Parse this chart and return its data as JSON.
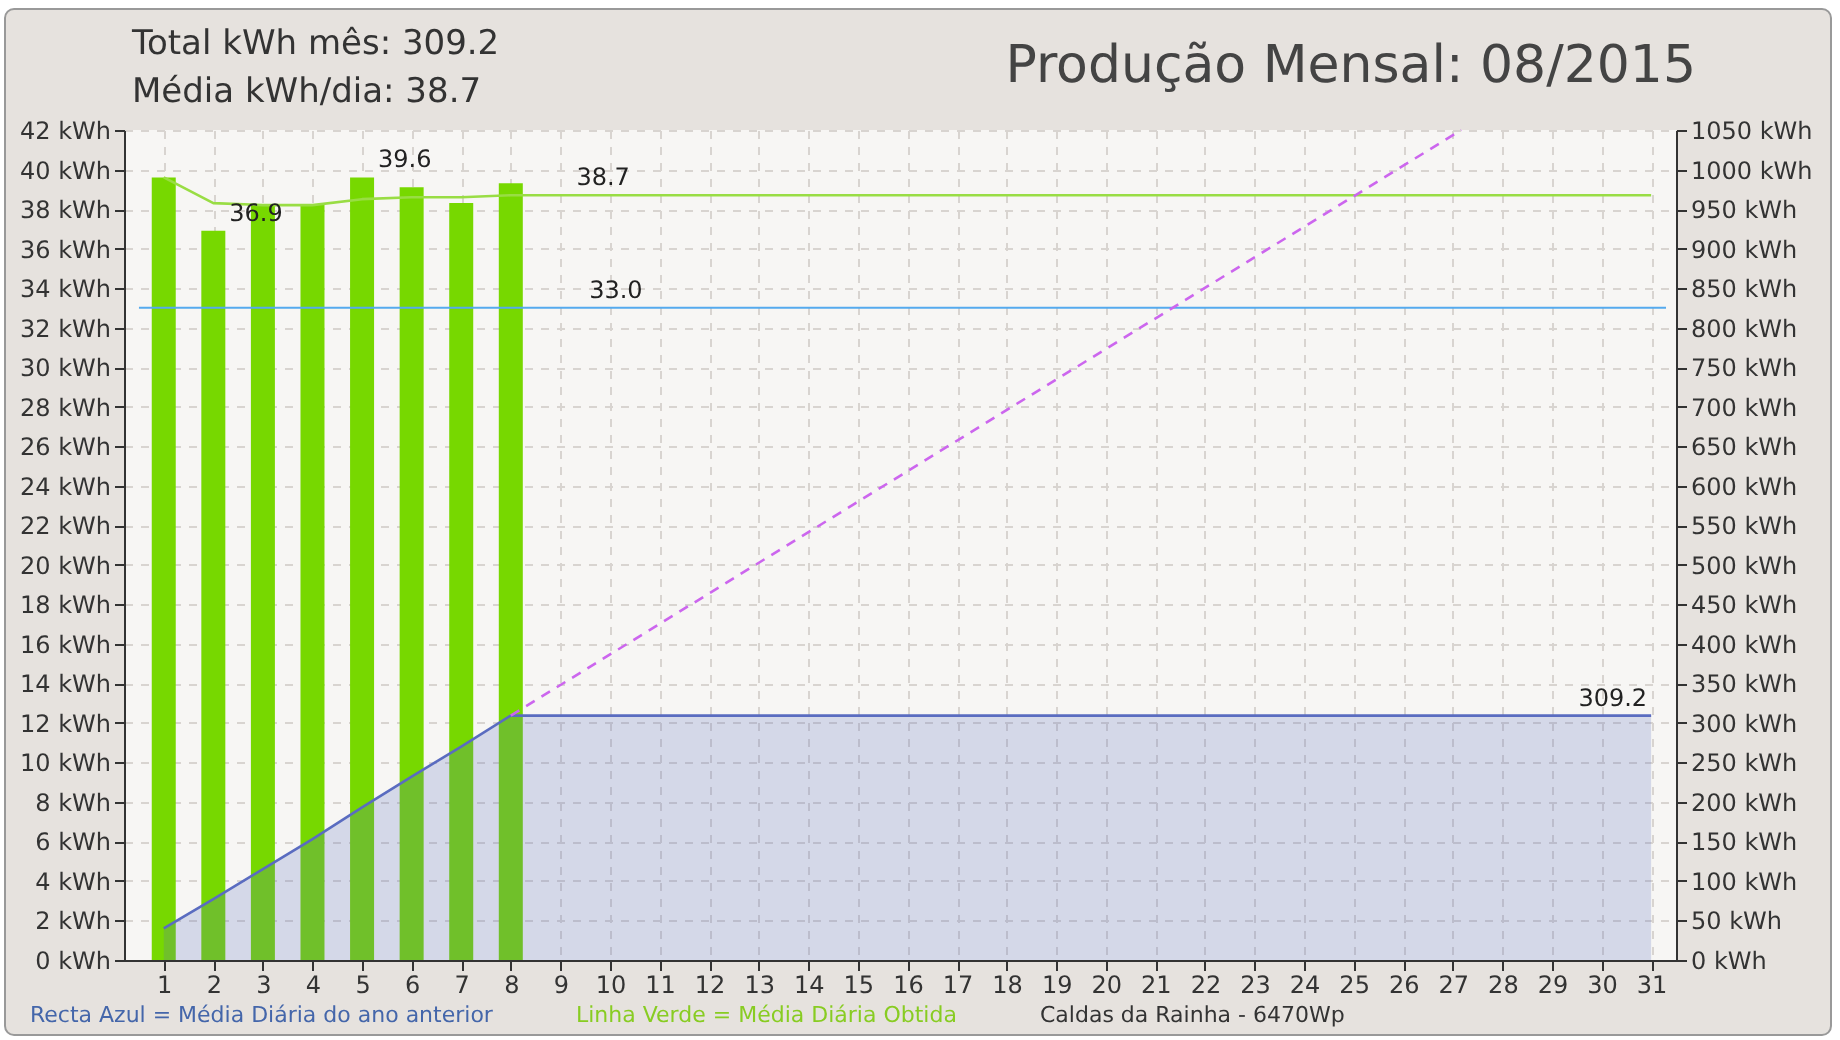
{
  "chart_data": {
    "type": "bar",
    "title": "Produção Mensal: 08/2015",
    "x": [
      1,
      2,
      3,
      4,
      5,
      6,
      7,
      8
    ],
    "series": [
      {
        "color": "#77d800",
        "values": [
          39.6,
          36.9,
          38.2,
          38.2,
          39.6,
          39.1,
          38.3,
          39.3
        ]
      },
      {
        "type": "line",
        "color": "#99dd44",
        "x": [
          1,
          2,
          3,
          4,
          5,
          6,
          7,
          8,
          9,
          10,
          11,
          12,
          13,
          14,
          15,
          16,
          17,
          18,
          19,
          20,
          21,
          22,
          23,
          24,
          25,
          26,
          27,
          28,
          29,
          30,
          31
        ],
        "values": [
          39.6,
          38.3,
          38.2,
          38.2,
          38.5,
          38.6,
          38.6,
          38.7,
          38.7,
          38.7,
          38.7,
          38.7,
          38.7,
          38.7,
          38.7,
          38.7,
          38.7,
          38.7,
          38.7,
          38.7,
          38.7,
          38.7,
          38.7,
          38.7,
          38.7,
          38.7,
          38.7,
          38.7,
          38.7,
          38.7,
          38.7
        ]
      },
      {
        "type": "area",
        "axis": "y2",
        "color": "#5a6cc0",
        "x": [
          1,
          2,
          3,
          4,
          5,
          6,
          7,
          8,
          9,
          10,
          11,
          12,
          13,
          14,
          15,
          16,
          17,
          18,
          19,
          20,
          21,
          22,
          23,
          24,
          25,
          26,
          27,
          28,
          29,
          30,
          31
        ],
        "value_labels": [
          null,
          null,
          null,
          null,
          null,
          null,
          null,
          null,
          null,
          null,
          null,
          null,
          null,
          null,
          null,
          null,
          null,
          null,
          null,
          null,
          null,
          null,
          null,
          null,
          null,
          null,
          null,
          null,
          null,
          null,
          "309.2"
        ],
        "values": [
          40,
          77,
          115,
          153,
          193,
          232,
          270,
          309.2,
          309.2,
          309.2,
          309.2,
          309.2,
          309.2,
          309.2,
          309.2,
          309.2,
          309.2,
          309.2,
          309.2,
          309.2,
          309.2,
          309.2,
          309.2,
          309.2,
          309.2,
          309.2,
          309.2,
          309.2,
          309.2,
          309.2,
          309.2
        ]
      },
      {
        "type": "line",
        "axis": "y2",
        "color": "#cc66ee",
        "line_style": "dashed",
        "x": [
          8,
          27.17
        ],
        "values": [
          309.2,
          1050
        ]
      }
    ],
    "xlim": [
      0.4,
      31.3
    ],
    "xticks": [
      1,
      2,
      3,
      4,
      5,
      6,
      7,
      8,
      9,
      10,
      11,
      12,
      13,
      14,
      15,
      16,
      17,
      18,
      19,
      20,
      21,
      22,
      23,
      24,
      25,
      26,
      27,
      28,
      29,
      30,
      31
    ],
    "ylim": [
      0,
      42
    ],
    "yticks": [
      {
        "value": 0,
        "label": "0 kWh"
      },
      {
        "value": 2,
        "label": "2 kWh"
      },
      {
        "value": 4,
        "label": "4 kWh"
      },
      {
        "value": 6,
        "label": "6 kWh"
      },
      {
        "value": 8,
        "label": "8 kWh"
      },
      {
        "value": 10,
        "label": "10 kWh"
      },
      {
        "value": 12,
        "label": "12 kWh"
      },
      {
        "value": 14,
        "label": "14 kWh"
      },
      {
        "value": 16,
        "label": "16 kWh"
      },
      {
        "value": 18,
        "label": "18 kWh"
      },
      {
        "value": 20,
        "label": "20 kWh"
      },
      {
        "value": 22,
        "label": "22 kWh"
      },
      {
        "value": 24,
        "label": "24 kWh"
      },
      {
        "value": 26,
        "label": "26 kWh"
      },
      {
        "value": 28,
        "label": "28 kWh"
      },
      {
        "value": 30,
        "label": "30 kWh"
      },
      {
        "value": 32,
        "label": "32 kWh"
      },
      {
        "value": 34,
        "label": "34 kWh"
      },
      {
        "value": 36,
        "label": "36 kWh"
      },
      {
        "value": 38,
        "label": "38 kWh"
      },
      {
        "value": 40,
        "label": "40 kWh"
      },
      {
        "value": 42,
        "label": "42 kWh"
      }
    ],
    "y2lim": [
      0,
      1050
    ],
    "y2ticks": [
      {
        "value": 0,
        "label": "0 kWh"
      },
      {
        "value": 50,
        "label": "50 kWh"
      },
      {
        "value": 100,
        "label": "100 kWh"
      },
      {
        "value": 150,
        "label": "150 kWh"
      },
      {
        "value": 200,
        "label": "200 kWh"
      },
      {
        "value": 250,
        "label": "250 kWh"
      },
      {
        "value": 300,
        "label": "300 kWh"
      },
      {
        "value": 350,
        "label": "350 kWh"
      },
      {
        "value": 400,
        "label": "400 kWh"
      },
      {
        "value": 450,
        "label": "450 kWh"
      },
      {
        "value": 500,
        "label": "500 kWh"
      },
      {
        "value": 550,
        "label": "550 kWh"
      },
      {
        "value": 600,
        "label": "600 kWh"
      },
      {
        "value": 650,
        "label": "650 kWh"
      },
      {
        "value": 700,
        "label": "700 kWh"
      },
      {
        "value": 750,
        "label": "750 kWh"
      },
      {
        "value": 800,
        "label": "800 kWh"
      },
      {
        "value": 850,
        "label": "850 kWh"
      },
      {
        "value": 900,
        "label": "900 kWh"
      },
      {
        "value": 950,
        "label": "950 kWh"
      },
      {
        "value": 1000,
        "label": "1000 kWh"
      },
      {
        "value": 1050,
        "label": "1050 kWh"
      }
    ],
    "ref_lines": [
      {
        "axis": "y",
        "value": 33.0,
        "label": "33.0",
        "color": "#55aaee"
      }
    ],
    "grid": true,
    "annotations": [
      "Total kWh mês: 309.2",
      "Média kWh/dia: 38.7",
      {
        "text": "36.9",
        "x": 2,
        "y": 36.9
      },
      {
        "text": "39.6",
        "x": 5,
        "y": 39.6
      },
      {
        "text": "38.7",
        "x": 9,
        "y": 38.7
      },
      "Recta Azul = Média Diária do ano anterior",
      "Linha Verde = Média Diária Obtida",
      "Caldas da Rainha  -  6470Wp"
    ]
  }
}
